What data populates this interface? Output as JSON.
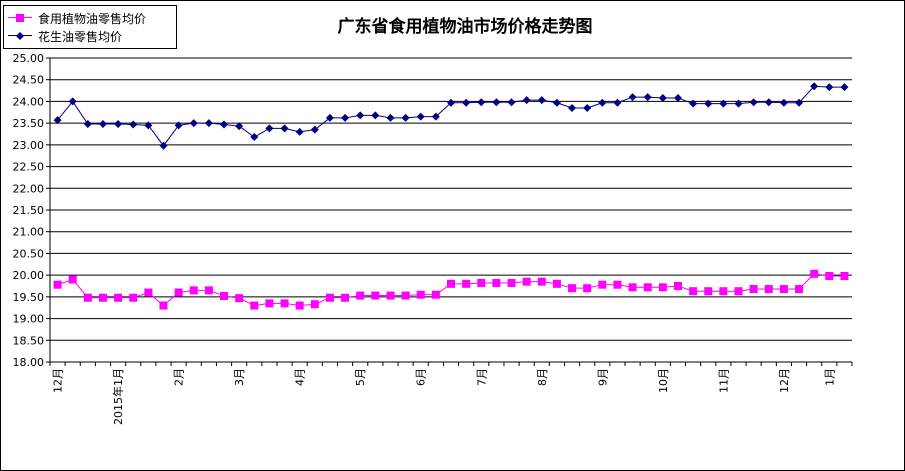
{
  "chart_data": {
    "type": "line",
    "title": "广东省食用植物油市场价格走势图",
    "ylim": [
      18.0,
      25.0
    ],
    "ytick_step": 0.5,
    "grid": true,
    "legend_position": "top-left",
    "x_tick_labels": [
      "12月",
      "2015年1月",
      "2月",
      "3月",
      "4月",
      "5月",
      "6月",
      "7月",
      "8月",
      "9月",
      "10月",
      "11月",
      "12月",
      "1月"
    ],
    "series": [
      {
        "name": "食用植物油零售均价",
        "color": "#ff00ff",
        "marker": "square",
        "values": [
          19.78,
          19.9,
          19.48,
          19.48,
          19.48,
          19.48,
          19.6,
          19.3,
          19.6,
          19.65,
          19.65,
          19.52,
          19.47,
          19.3,
          19.35,
          19.35,
          19.3,
          19.33,
          19.48,
          19.48,
          19.53,
          19.53,
          19.53,
          19.53,
          19.55,
          19.55,
          19.8,
          19.8,
          19.82,
          19.82,
          19.82,
          19.85,
          19.85,
          19.8,
          19.7,
          19.7,
          19.78,
          19.78,
          19.72,
          19.72,
          19.72,
          19.75,
          19.63,
          19.63,
          19.63,
          19.63,
          19.68,
          19.68,
          19.68,
          19.68,
          20.03,
          19.98,
          19.98
        ]
      },
      {
        "name": "花生油零售均价",
        "color": "#000080",
        "marker": "diamond",
        "values": [
          23.57,
          24.0,
          23.48,
          23.48,
          23.48,
          23.47,
          23.45,
          22.98,
          23.45,
          23.5,
          23.5,
          23.47,
          23.43,
          23.18,
          23.38,
          23.38,
          23.3,
          23.35,
          23.62,
          23.62,
          23.68,
          23.68,
          23.62,
          23.62,
          23.65,
          23.65,
          23.97,
          23.97,
          23.98,
          23.98,
          23.98,
          24.03,
          24.03,
          23.97,
          23.85,
          23.85,
          23.97,
          23.97,
          24.1,
          24.1,
          24.08,
          24.08,
          23.95,
          23.95,
          23.95,
          23.95,
          23.98,
          23.98,
          23.97,
          23.97,
          24.35,
          24.33,
          24.33
        ]
      }
    ]
  }
}
